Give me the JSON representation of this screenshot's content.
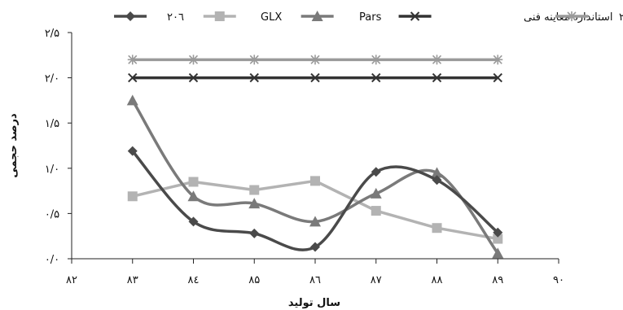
{
  "chart_data": {
    "type": "line",
    "xlabel": "سال تولید",
    "ylabel": "درصد حجمی",
    "x_ticks": [
      "۸۲",
      "۸۳",
      "۸٤",
      "۸۵",
      "۸٦",
      "۸۷",
      "۸۸",
      "۸۹",
      "۹۰"
    ],
    "xlim": [
      82,
      90
    ],
    "y_ticks": [
      "۰/۰",
      "۰/۵",
      "۱/۰",
      "۱/۵",
      "۲/۰",
      "۲/۵"
    ],
    "ylim": [
      0,
      2.5
    ],
    "grid": false,
    "legend_position": "top",
    "x": [
      83,
      84,
      85,
      86,
      87,
      88,
      89
    ],
    "series": [
      {
        "name": "۲۰٦",
        "color": "#4a4a4a",
        "marker": "diamond",
        "smooth": true,
        "values": [
          1.19,
          0.41,
          0.28,
          0.13,
          0.96,
          0.87,
          0.29
        ]
      },
      {
        "name": "GLX",
        "color": "#b3b3b3",
        "marker": "square",
        "smooth": false,
        "values": [
          0.69,
          0.85,
          0.76,
          0.86,
          0.53,
          0.34,
          0.22
        ]
      },
      {
        "name": "Pars",
        "color": "#7a7a7a",
        "marker": "triangle",
        "smooth": true,
        "values": [
          1.75,
          0.69,
          0.61,
          0.41,
          0.72,
          0.95,
          0.06
        ]
      },
      {
        "name": "استاندارد معاینه فنی",
        "color": "#333333",
        "marker": "x",
        "smooth": false,
        "values": [
          2.0,
          2.0,
          2.0,
          2.0,
          2.0,
          2.0,
          2.0
        ]
      },
      {
        "name": "یورو ۲",
        "color": "#9a9a9a",
        "marker": "star",
        "smooth": false,
        "values": [
          2.2,
          2.2,
          2.2,
          2.2,
          2.2,
          2.2,
          2.2
        ]
      }
    ]
  }
}
